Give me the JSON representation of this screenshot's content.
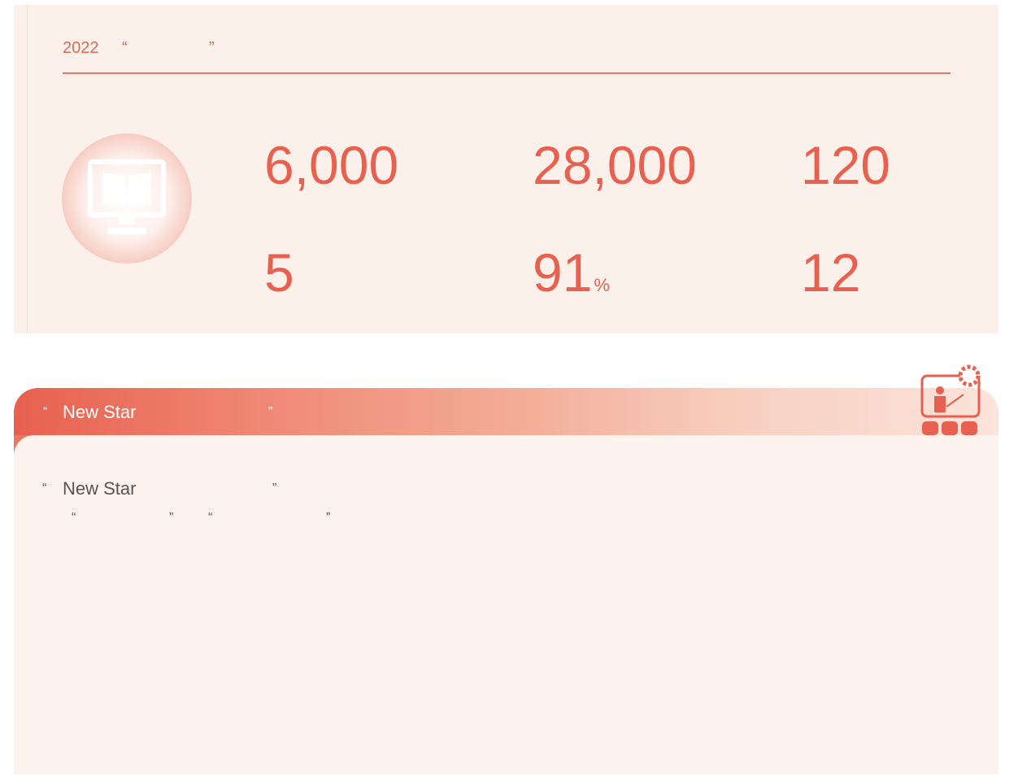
{
  "stats_panel": {
    "heading": {
      "year": "2022",
      "open_quote": "“",
      "close_quote": "”"
    },
    "stats": [
      {
        "value": "6,000"
      },
      {
        "value": "28,000"
      },
      {
        "value": "120"
      },
      {
        "value": "5"
      },
      {
        "value": "91",
        "unit": "%"
      },
      {
        "value": "12"
      }
    ]
  },
  "banner": {
    "open_quote": "“",
    "title": "New Star",
    "close_quote": "”"
  },
  "body": {
    "line1": {
      "open_quote": "“",
      "text": "New Star",
      "close_quote": "”"
    },
    "line2": {
      "quotes": [
        "“",
        "”",
        "“",
        "”"
      ]
    }
  }
}
